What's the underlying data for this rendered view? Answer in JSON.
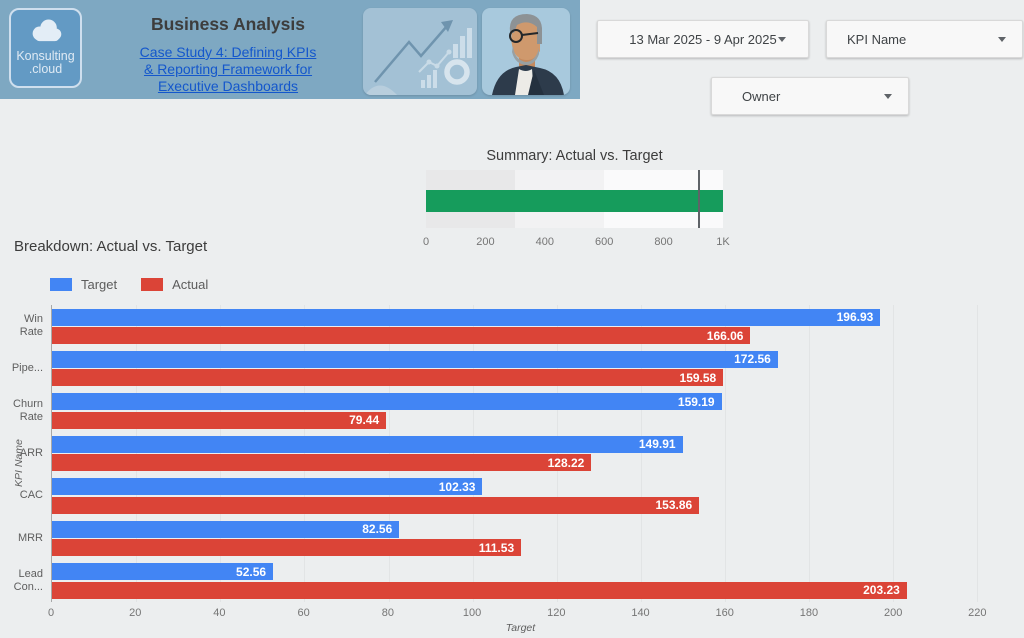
{
  "header": {
    "logo": {
      "line1": "Konsulting",
      "line2": ".cloud"
    },
    "title": "Business Analysis",
    "link_lines": [
      "Case Study 4: Defining KPIs",
      "& Reporting Framework for",
      "Executive Dashboards"
    ]
  },
  "filters": {
    "date_range": "13 Mar 2025 - 9 Apr 2025",
    "kpi_name": "KPI Name",
    "owner": "Owner"
  },
  "colors": {
    "header_bg": "#7ea8c2",
    "link_blue": "#1457cc",
    "target_blue": "#4285f4",
    "actual_red": "#db4437",
    "summary_green": "#169c5c"
  },
  "chart_data": [
    {
      "type": "bullet",
      "title": "Summary: Actual vs. Target",
      "series": [
        {
          "name": "Actual",
          "value": 1001.92
        },
        {
          "name": "Target",
          "value": 916.04
        }
      ],
      "axis_range": [
        0,
        1000
      ],
      "bands": [
        {
          "from": 0,
          "to": 300,
          "color": "#e8e8e9"
        },
        {
          "from": 300,
          "to": 600,
          "color": "#f2f2f3"
        },
        {
          "from": 600,
          "to": 1000,
          "color": "#fafafb"
        }
      ],
      "bar_color": "#169c5c",
      "target_line_color": "#5f6368",
      "axis_ticks": [
        {
          "v": 0,
          "label": "0"
        },
        {
          "v": 200,
          "label": "200"
        },
        {
          "v": 400,
          "label": "400"
        },
        {
          "v": 600,
          "label": "600"
        },
        {
          "v": 800,
          "label": "800"
        },
        {
          "v": 1000,
          "label": "1K"
        }
      ]
    },
    {
      "type": "bar",
      "orientation": "horizontal",
      "title": "Breakdown: Actual vs. Target",
      "xlabel": "Target",
      "ylabel": "KPI Name",
      "xlim": [
        0,
        223
      ],
      "grid": true,
      "legend_position": "top-left",
      "x_ticks": [
        0,
        20,
        40,
        60,
        80,
        100,
        120,
        140,
        160,
        180,
        200,
        220
      ],
      "categories": [
        "Win Rate",
        "Pipe...",
        "Churn Rate",
        "ARR",
        "CAC",
        "MRR",
        "Lead Con..."
      ],
      "category_lines": [
        [
          "Win",
          "Rate"
        ],
        [
          "Pipe..."
        ],
        [
          "Churn",
          "Rate"
        ],
        [
          "ARR"
        ],
        [
          "CAC"
        ],
        [
          "MRR"
        ],
        [
          "Lead",
          "Con..."
        ]
      ],
      "series": [
        {
          "name": "Target",
          "color": "#4285f4",
          "values": [
            196.93,
            172.56,
            159.19,
            149.91,
            102.33,
            82.56,
            52.56
          ]
        },
        {
          "name": "Actual",
          "color": "#db4437",
          "values": [
            166.06,
            159.58,
            79.44,
            128.22,
            153.86,
            111.53,
            203.23
          ]
        }
      ]
    }
  ]
}
